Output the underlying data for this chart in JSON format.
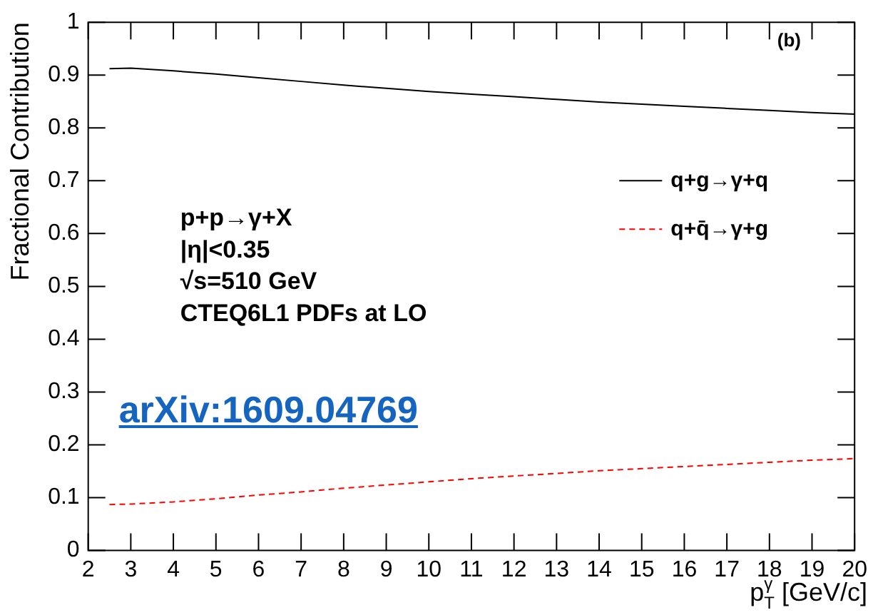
{
  "chart_data": {
    "type": "line",
    "xlabel": "p$_{T}$$^{γ}$ [GeV/c]",
    "ylabel": "Fractional Contribution",
    "x": [
      2.5,
      3,
      4,
      5,
      6,
      7,
      8,
      9,
      10,
      11,
      12,
      13,
      14,
      15,
      16,
      17,
      18,
      19,
      20
    ],
    "series": [
      {
        "name": "q+g→γ+q",
        "color": "#000000",
        "line_style": "solid",
        "values": [
          0.912,
          0.913,
          0.908,
          0.902,
          0.895,
          0.888,
          0.881,
          0.875,
          0.869,
          0.864,
          0.859,
          0.854,
          0.849,
          0.845,
          0.841,
          0.837,
          0.833,
          0.829,
          0.826
        ]
      },
      {
        "name": "q+q̄→γ+g",
        "color": "#ff0000",
        "line_style": "dashed",
        "values": [
          0.087,
          0.088,
          0.092,
          0.098,
          0.105,
          0.111,
          0.118,
          0.124,
          0.13,
          0.136,
          0.141,
          0.146,
          0.151,
          0.155,
          0.159,
          0.163,
          0.167,
          0.171,
          0.174
        ]
      }
    ],
    "xlim": [
      2,
      20
    ],
    "xticks": [
      2,
      3,
      4,
      5,
      6,
      7,
      8,
      9,
      10,
      11,
      12,
      13,
      14,
      15,
      16,
      17,
      18,
      19,
      20
    ],
    "ylim": [
      0,
      1
    ],
    "yticks": [
      0,
      0.1,
      0.2,
      0.3,
      0.4,
      0.5,
      0.6,
      0.7,
      0.8,
      0.9,
      1
    ],
    "grid": false,
    "legend": "right",
    "marker": "none",
    "annotations": [
      "(b)",
      "p+p→γ+X",
      "|η|<0.35",
      "√s=510 GeV",
      "CTEQ6L1 PDFs at LO",
      "arXiv:1609.04769"
    ]
  }
}
